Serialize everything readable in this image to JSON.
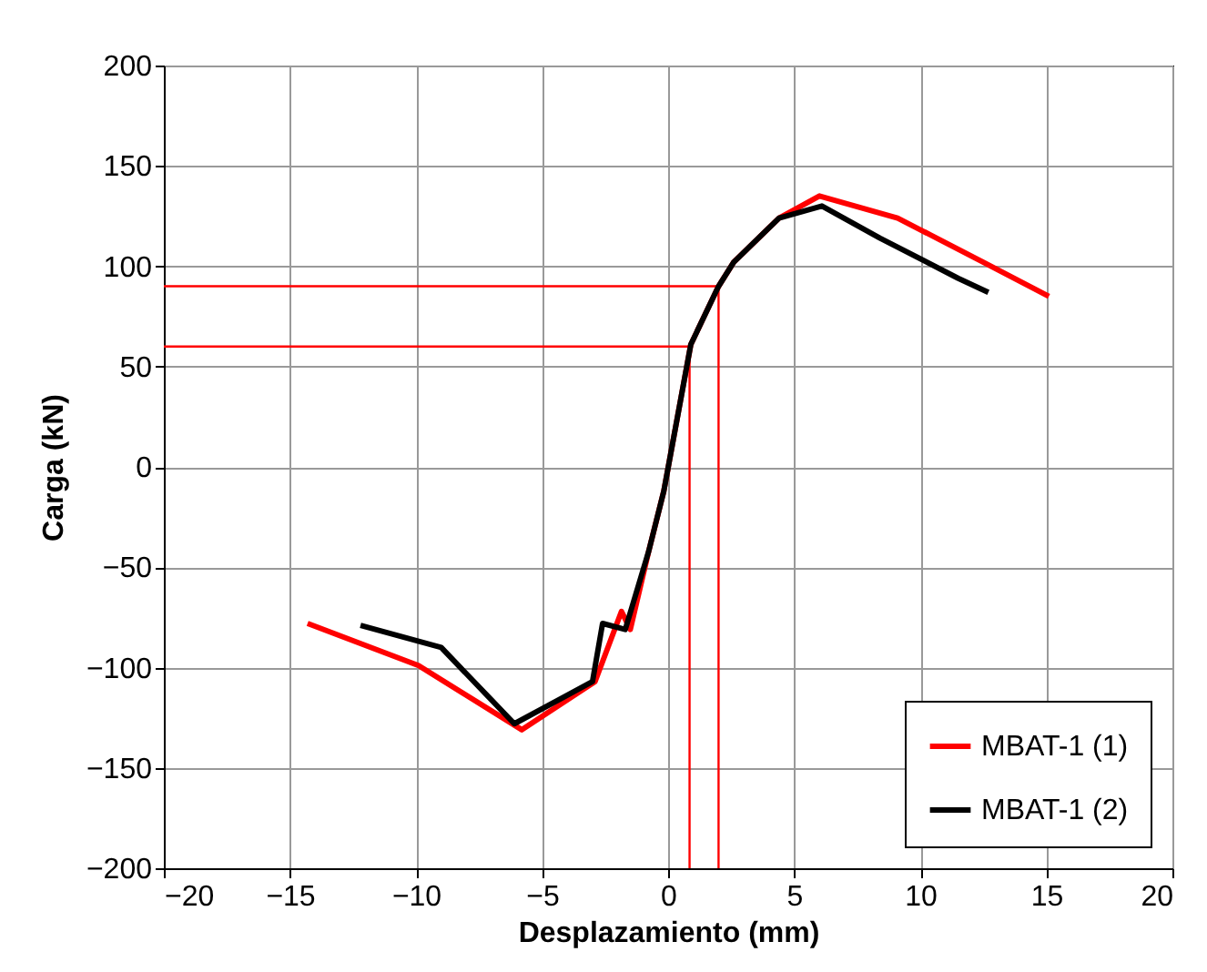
{
  "chart_data": {
    "type": "line",
    "xlabel": "Desplazamiento (mm)",
    "ylabel": "Carga (kN)",
    "xlim": [
      -20,
      20
    ],
    "xticks": [
      -20,
      -15,
      -10,
      -5,
      0,
      5,
      10,
      15,
      20
    ],
    "ylim": [
      -200,
      200
    ],
    "yticks": [
      -200,
      -150,
      -100,
      -50,
      0,
      50,
      100,
      150,
      200
    ],
    "grid": true,
    "legend": "bottom right",
    "marker": "none",
    "line_style": "solid",
    "series": [
      {
        "name": "MBAT-1 (1)",
        "color": "#ff0000",
        "x": [
          -14.3,
          -9.9,
          -5.8,
          -2.9,
          -1.85,
          -1.5,
          -0.77,
          -0.17,
          0.9,
          2.0,
          2.6,
          4.4,
          6.0,
          9.1,
          12.5,
          15.1
        ],
        "values": [
          -78,
          -99,
          -131,
          -107,
          -72,
          -81,
          -42,
          -12,
          61,
          90,
          102,
          124,
          135,
          124,
          102,
          85
        ]
      },
      {
        "name": "MBAT-1 (2)",
        "color": "#000000",
        "x": [
          -12.2,
          -9.0,
          -6.1,
          -3.0,
          -2.6,
          -1.7,
          -0.77,
          -0.17,
          0.9,
          2.0,
          2.6,
          4.4,
          6.1,
          8.4,
          11.5,
          12.7
        ],
        "values": [
          -79,
          -90,
          -128,
          -107,
          -78,
          -81,
          -42,
          -12,
          61,
          90,
          102,
          124,
          130,
          114,
          94,
          87
        ]
      },
      {
        "type": "line",
        "color": "#ff0000",
        "x": [
          -20,
          2.0,
          2.0
        ],
        "values": [
          90,
          90,
          -200
        ]
      },
      {
        "type": "line",
        "color": "#ff0000",
        "x": [
          -20,
          0.85,
          0.85
        ],
        "values": [
          60,
          60,
          -200
        ]
      }
    ]
  }
}
